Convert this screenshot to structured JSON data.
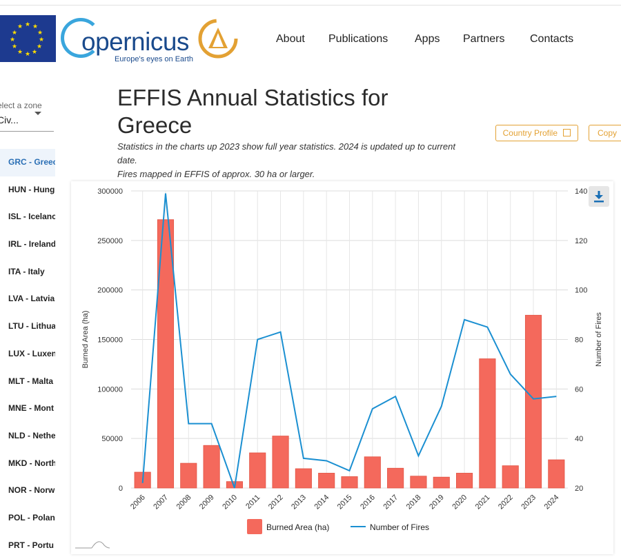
{
  "header": {
    "logo_word": "opernicus",
    "logo_tagline": "Europe's eyes on Earth",
    "nav": [
      "About",
      "Publications",
      "Apps",
      "Partners",
      "Contacts"
    ],
    "colors": {
      "nav": "#e3a133",
      "brand_blue": "#1a4a8c"
    }
  },
  "sidebar": {
    "zone_label": "elect a zone",
    "zone_value": "Civ...",
    "countries": [
      {
        "label": "GRC - Greec",
        "active": true
      },
      {
        "label": "HUN - Hung"
      },
      {
        "label": "ISL - Icelanc"
      },
      {
        "label": "IRL - Ireland"
      },
      {
        "label": "ITA - Italy"
      },
      {
        "label": "LVA - Latvia"
      },
      {
        "label": "LTU - Lithua"
      },
      {
        "label": "LUX - Luxen"
      },
      {
        "label": "MLT - Malta"
      },
      {
        "label": "MNE - Mont"
      },
      {
        "label": "NLD - Nethe"
      },
      {
        "label": "MKD - North"
      },
      {
        "label": "NOR - Norw"
      },
      {
        "label": "POL - Polan"
      },
      {
        "label": "PRT - Portu"
      }
    ]
  },
  "main": {
    "title": "EFFIS Annual Statistics for Greece",
    "sub1": "Statistics in the charts up 2023 show full year statistics. 2024 is updated up to current date.",
    "sub2": "Fires mapped in EFFIS of approx. 30 ha or larger.",
    "country_profile_label": "Country Profile",
    "copy_label": "Copy",
    "download_icon": "download-icon"
  },
  "chart_data": {
    "type": "bar",
    "categories": [
      "2006",
      "2007",
      "2008",
      "2009",
      "2010",
      "2011",
      "2012",
      "2013",
      "2014",
      "2015",
      "2016",
      "2017",
      "2018",
      "2019",
      "2020",
      "2021",
      "2022",
      "2023",
      "2024"
    ],
    "series": [
      {
        "name": "Burned Area (ha)",
        "type": "bar",
        "axis": "left",
        "color": "#f4695c",
        "values": [
          16000,
          271000,
          25000,
          43000,
          6500,
          35500,
          52500,
          19500,
          15000,
          11500,
          31500,
          20000,
          12000,
          11000,
          15000,
          130500,
          22500,
          174500,
          28500
        ]
      },
      {
        "name": "Number of Fires",
        "type": "line",
        "axis": "right",
        "color": "#1a8fd1",
        "values": [
          22,
          139,
          46,
          46,
          20,
          80,
          83,
          32,
          31,
          27,
          52,
          57,
          33,
          53,
          88,
          85,
          66,
          56,
          57
        ]
      }
    ],
    "ylabel": "Burned Area (ha)",
    "y2label": "Number of Fires",
    "ylim": [
      0,
      300000
    ],
    "yticks": [
      0,
      50000,
      100000,
      150000,
      200000,
      250000,
      300000
    ],
    "y2lim": [
      20,
      140
    ],
    "y2ticks": [
      20,
      40,
      60,
      80,
      100,
      120,
      140
    ],
    "grid": true,
    "legend": "bottom"
  }
}
